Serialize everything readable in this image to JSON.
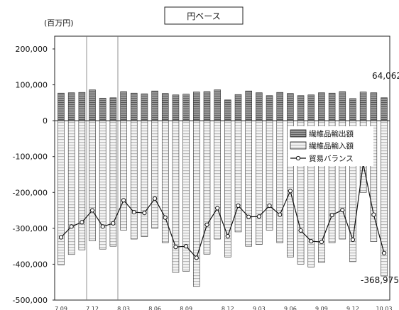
{
  "chart_data": {
    "type": "bar",
    "title": "円ベース",
    "unit_label": "(百万円)",
    "ylim": [
      -500000,
      200000
    ],
    "yticks": [
      200000,
      100000,
      0,
      -100000,
      -200000,
      -300000,
      -400000,
      -500000
    ],
    "ytick_labels": [
      "200,000",
      "100,000",
      "0",
      "-100,000",
      "-200,000",
      "-300,000",
      "-400,000",
      "-500,000"
    ],
    "xtick_labels": [
      "7.09",
      "7.12",
      "8.03",
      "8.06",
      "8.09",
      "8.12",
      "9.03",
      "9.06",
      "9.09",
      "9.12",
      "10.03"
    ],
    "grid": false,
    "legend_position": "right",
    "series": [
      {
        "name": "繊維品輸出額",
        "kind": "bar",
        "values": [
          77000,
          78000,
          79000,
          86000,
          63000,
          64000,
          81000,
          77000,
          75000,
          83000,
          76000,
          72000,
          74000,
          80000,
          81000,
          86000,
          58000,
          73000,
          83000,
          78000,
          70000,
          79000,
          76000,
          70000,
          72000,
          78000,
          77000,
          81000,
          62000,
          80000,
          78000,
          64062
        ]
      },
      {
        "name": "繊維品輸入額",
        "kind": "bar",
        "values": [
          -402000,
          -373000,
          -360000,
          -335000,
          -358000,
          -350000,
          -305000,
          -330000,
          -323000,
          -300000,
          -340000,
          -423000,
          -420000,
          -462000,
          -372000,
          -330000,
          -380000,
          -310000,
          -350000,
          -345000,
          -305000,
          -340000,
          -380000,
          -400000,
          -408000,
          -395000,
          -340000,
          -330000,
          -393000,
          -200000,
          -337000,
          -433037
        ]
      },
      {
        "name": "貿易バランス",
        "kind": "line",
        "values": [
          -325000,
          -295000,
          -283000,
          -250000,
          -295000,
          -286000,
          -222000,
          -255000,
          -257000,
          -217000,
          -270000,
          -352000,
          -350000,
          -382000,
          -290000,
          -244000,
          -322000,
          -237000,
          -268000,
          -267000,
          -237000,
          -262000,
          -196000,
          -306000,
          -336000,
          -338000,
          -263000,
          -249000,
          -332000,
          -120000,
          -262000,
          -368975
        ]
      }
    ],
    "annotations": [
      "64,062",
      "-368,975"
    ]
  },
  "colors": {
    "export_fill": "#8a8a8a",
    "import_fill": "#e6e6e6",
    "line": "#111111",
    "axis": "#222222"
  }
}
